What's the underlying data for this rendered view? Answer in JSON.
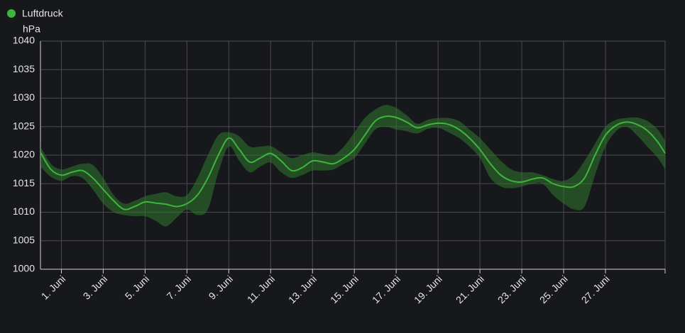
{
  "chart_data": {
    "type": "line",
    "legend": "Luftdruck",
    "y_unit": "hPa",
    "color": "#3db53d",
    "band_color": "#2f7a2f",
    "x": [
      0,
      0.5,
      1,
      1.5,
      2,
      2.5,
      3,
      3.5,
      4,
      4.5,
      5,
      5.5,
      6,
      6.5,
      7,
      7.5,
      8,
      8.5,
      9,
      9.5,
      10,
      10.5,
      11,
      11.5,
      12,
      12.5,
      13,
      13.5,
      14,
      14.5,
      15,
      15.5,
      16,
      16.5,
      17,
      17.5,
      18,
      18.5,
      19,
      19.5,
      20,
      20.5,
      21,
      21.5,
      22,
      22.5,
      23,
      23.5,
      24,
      24.5,
      25,
      25.5,
      26,
      26.5,
      27,
      27.5,
      28,
      28.5,
      29,
      29.5,
      29.85
    ],
    "values": [
      1020.5,
      1017.5,
      1016.5,
      1017,
      1017.3,
      1016,
      1014,
      1012,
      1010.5,
      1011,
      1011.8,
      1011.6,
      1011.4,
      1011,
      1011.5,
      1013,
      1016,
      1020,
      1023,
      1021,
      1018.8,
      1019.5,
      1020.3,
      1019,
      1017.3,
      1017.8,
      1019,
      1018.8,
      1018.5,
      1019.5,
      1021,
      1023.5,
      1026,
      1026.8,
      1026.6,
      1025.8,
      1024.8,
      1025.3,
      1025.6,
      1025.4,
      1024.5,
      1023,
      1021,
      1018.5,
      1016.5,
      1015.5,
      1015.3,
      1015.8,
      1016,
      1015,
      1014.5,
      1014.5,
      1016,
      1020,
      1023.5,
      1025.2,
      1025.8,
      1025.4,
      1024.3,
      1022.3,
      1020.3
    ],
    "low": [
      1018,
      1016.2,
      1015.5,
      1016.3,
      1016,
      1014,
      1011.5,
      1010,
      1009.5,
      1009.3,
      1009.3,
      1008.5,
      1007.5,
      1009,
      1010.5,
      1009.5,
      1010.5,
      1017,
      1021.5,
      1019,
      1017,
      1018,
      1018.7,
      1017,
      1016,
      1016.5,
      1017.3,
      1017.3,
      1017.5,
      1018.5,
      1019.5,
      1022,
      1024.5,
      1025,
      1024.5,
      1024.2,
      1023.8,
      1024.6,
      1024.8,
      1024,
      1023,
      1021.5,
      1019.5,
      1016,
      1014.5,
      1014.2,
      1014.5,
      1015,
      1015,
      1013,
      1011.5,
      1010.5,
      1011,
      1016.5,
      1021.5,
      1024.2,
      1025,
      1023.5,
      1021.5,
      1019.5,
      1017.5
    ],
    "high": [
      1021.5,
      1018.5,
      1017.5,
      1018,
      1018.5,
      1018.3,
      1016,
      1013,
      1011.5,
      1012,
      1012.8,
      1013.2,
      1013.5,
      1012.8,
      1013,
      1016,
      1020,
      1023.5,
      1024,
      1023.3,
      1021.5,
      1021.5,
      1021.6,
      1020.5,
      1019.5,
      1020,
      1020.5,
      1020.2,
      1020,
      1021.5,
      1024,
      1026.5,
      1028,
      1028.8,
      1028.3,
      1027,
      1025.5,
      1026.2,
      1026.5,
      1026.5,
      1026,
      1024.5,
      1023,
      1021,
      1019,
      1017.5,
      1017,
      1017,
      1016.5,
      1015.8,
      1015.5,
      1016.5,
      1019,
      1022,
      1025,
      1026.2,
      1026.5,
      1026.6,
      1026,
      1024.5,
      1022.5
    ],
    "xlim": [
      0,
      29.85
    ],
    "xticks": [
      {
        "value": 1,
        "label": "1. Juni"
      },
      {
        "value": 3,
        "label": "3. Juni"
      },
      {
        "value": 5,
        "label": "5. Juni"
      },
      {
        "value": 7,
        "label": "7. Juni"
      },
      {
        "value": 9,
        "label": "9. Juni"
      },
      {
        "value": 11,
        "label": "11. Juni"
      },
      {
        "value": 13,
        "label": "13. Juni"
      },
      {
        "value": 15,
        "label": "15. Juni"
      },
      {
        "value": 17,
        "label": "17. Juni"
      },
      {
        "value": 19,
        "label": "19. Juni"
      },
      {
        "value": 21,
        "label": "21. Juni"
      },
      {
        "value": 23,
        "label": "23. Juni"
      },
      {
        "value": 25,
        "label": "25. Juni"
      },
      {
        "value": 27,
        "label": "27. Juni"
      }
    ],
    "ylim": [
      1000,
      1040
    ],
    "yticks": [
      1000,
      1005,
      1010,
      1015,
      1020,
      1025,
      1030,
      1035,
      1040
    ],
    "grid": true
  }
}
